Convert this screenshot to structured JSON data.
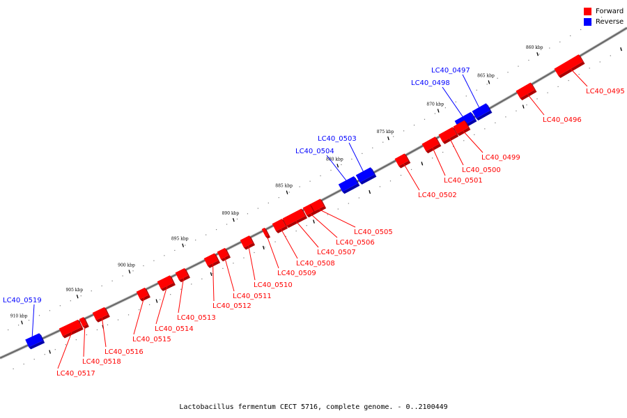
{
  "legend": {
    "forward_label": "Forward",
    "reverse_label": "Reverse",
    "forward_color": "#ff0000",
    "reverse_color": "#0000ff"
  },
  "caption": "Lactobacillus fermentum CECT 5716, complete genome. - 0..2100449",
  "ticks": [
    "860 kbp",
    "865 kbp",
    "870 kbp",
    "875 kbp",
    "880 kbp",
    "885 kbp",
    "890 kbp",
    "895 kbp",
    "900 kbp",
    "905 kbp",
    "910 kbp"
  ],
  "genes": [
    {
      "id": "LC40_0495",
      "strand": "forward"
    },
    {
      "id": "LC40_0496",
      "strand": "forward"
    },
    {
      "id": "LC40_0497",
      "strand": "reverse"
    },
    {
      "id": "LC40_0498",
      "strand": "reverse"
    },
    {
      "id": "LC40_0499",
      "strand": "forward"
    },
    {
      "id": "LC40_0500",
      "strand": "forward"
    },
    {
      "id": "LC40_0501",
      "strand": "forward"
    },
    {
      "id": "LC40_0502",
      "strand": "forward"
    },
    {
      "id": "LC40_0503",
      "strand": "reverse"
    },
    {
      "id": "LC40_0504",
      "strand": "reverse"
    },
    {
      "id": "LC40_0505",
      "strand": "forward"
    },
    {
      "id": "LC40_0506",
      "strand": "forward"
    },
    {
      "id": "LC40_0507",
      "strand": "forward"
    },
    {
      "id": "LC40_0508",
      "strand": "forward"
    },
    {
      "id": "LC40_0509",
      "strand": "forward"
    },
    {
      "id": "LC40_0510",
      "strand": "forward"
    },
    {
      "id": "LC40_0511",
      "strand": "forward"
    },
    {
      "id": "LC40_0512",
      "strand": "forward"
    },
    {
      "id": "LC40_0513",
      "strand": "forward"
    },
    {
      "id": "LC40_0514",
      "strand": "forward"
    },
    {
      "id": "LC40_0515",
      "strand": "forward"
    },
    {
      "id": "LC40_0516",
      "strand": "forward"
    },
    {
      "id": "LC40_0517",
      "strand": "forward"
    },
    {
      "id": "LC40_0518",
      "strand": "forward"
    },
    {
      "id": "LC40_0519",
      "strand": "reverse"
    }
  ]
}
